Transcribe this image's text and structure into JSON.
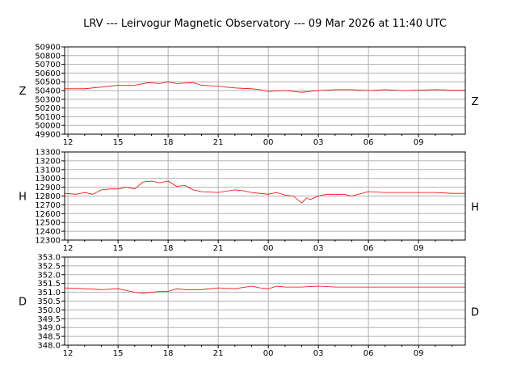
{
  "title": "LRV --- Leirvogur Magnetic Observatory --- 09 Mar 2026 at 11:40 UTC",
  "colors": {
    "trace": "#ff0000",
    "grid": "#b0b0b0",
    "axis": "#000000"
  },
  "chart_data": [
    {
      "type": "line",
      "component": "Z",
      "left_label": "Z",
      "right_label": "Z",
      "x_unit": "hours since 12:00 UTC 08 Mar 2026",
      "xlim": [
        -0.2,
        23.8
      ],
      "ylim": [
        49900,
        50900
      ],
      "yticks": [
        49900,
        50000,
        50100,
        50200,
        50300,
        50400,
        50500,
        50600,
        50700,
        50800,
        50900
      ],
      "xticks": [
        0,
        3,
        6,
        9,
        12,
        15,
        18,
        21
      ],
      "xtick_labels": [
        "12",
        "15",
        "18",
        "21",
        "00",
        "03",
        "06",
        "09"
      ],
      "series": [
        {
          "name": "Z",
          "x": [
            -0.2,
            1,
            2,
            3,
            4,
            4.8,
            5.5,
            6,
            6.5,
            7.5,
            8,
            9,
            10,
            11,
            11.5,
            12,
            13,
            14,
            15,
            16,
            17,
            18,
            19,
            20,
            21,
            22,
            23,
            23.8
          ],
          "y": [
            50420,
            50420,
            50440,
            50460,
            50460,
            50490,
            50480,
            50500,
            50480,
            50490,
            50460,
            50450,
            50430,
            50420,
            50410,
            50390,
            50400,
            50380,
            50400,
            50410,
            50410,
            50400,
            50410,
            50400,
            50405,
            50410,
            50405,
            50405
          ]
        }
      ]
    },
    {
      "type": "line",
      "component": "H",
      "left_label": "H",
      "right_label": "H",
      "x_unit": "hours since 12:00 UTC 08 Mar 2026",
      "xlim": [
        -0.2,
        23.8
      ],
      "ylim": [
        12300,
        13300
      ],
      "yticks": [
        12300,
        12400,
        12500,
        12600,
        12700,
        12800,
        12900,
        13000,
        13100,
        13200,
        13300
      ],
      "xticks": [
        0,
        3,
        6,
        9,
        12,
        15,
        18,
        21
      ],
      "xtick_labels": [
        "12",
        "15",
        "18",
        "21",
        "00",
        "03",
        "06",
        "09"
      ],
      "series": [
        {
          "name": "H",
          "x": [
            -0.2,
            0.5,
            1,
            1.5,
            2,
            2.5,
            3,
            3.5,
            4,
            4.5,
            5,
            5.5,
            6,
            6.5,
            7,
            7.5,
            8,
            9,
            10,
            10.5,
            11,
            11.5,
            12,
            12.5,
            13,
            13.5,
            14,
            14.3,
            14.5,
            15,
            15.5,
            16,
            16.5,
            17,
            18,
            19,
            20,
            21,
            22,
            23,
            23.8
          ],
          "y": [
            12830,
            12820,
            12840,
            12820,
            12870,
            12880,
            12880,
            12900,
            12880,
            12960,
            12970,
            12950,
            12970,
            12910,
            12920,
            12870,
            12850,
            12840,
            12870,
            12860,
            12840,
            12830,
            12820,
            12840,
            12810,
            12800,
            12720,
            12780,
            12760,
            12800,
            12820,
            12820,
            12820,
            12800,
            12850,
            12840,
            12840,
            12840,
            12840,
            12830,
            12830
          ]
        }
      ]
    },
    {
      "type": "line",
      "component": "D",
      "left_label": "D",
      "right_label": "D",
      "x_unit": "hours since 12:00 UTC 08 Mar 2026",
      "xlim": [
        -0.2,
        23.8
      ],
      "ylim": [
        348.0,
        353.0
      ],
      "yticks": [
        348.0,
        348.5,
        349.0,
        349.5,
        350.0,
        350.5,
        351.0,
        351.5,
        352.0,
        352.5,
        353.0
      ],
      "xticks": [
        0,
        3,
        6,
        9,
        12,
        15,
        18,
        21
      ],
      "xtick_labels": [
        "12",
        "15",
        "18",
        "21",
        "00",
        "03",
        "06",
        "09"
      ],
      "series": [
        {
          "name": "D",
          "x": [
            -0.2,
            1,
            2,
            3,
            3.5,
            4,
            4.5,
            5,
            5.5,
            6,
            6.5,
            7,
            8,
            9,
            10,
            11,
            11.5,
            12,
            12.5,
            13,
            14,
            15,
            16,
            17,
            18,
            19,
            20,
            21,
            22,
            23,
            23.8
          ],
          "y": [
            351.25,
            351.2,
            351.15,
            351.2,
            351.1,
            351.0,
            350.95,
            351.0,
            351.05,
            351.05,
            351.2,
            351.15,
            351.15,
            351.25,
            351.2,
            351.35,
            351.25,
            351.2,
            351.35,
            351.3,
            351.3,
            351.35,
            351.3,
            351.3,
            351.3,
            351.3,
            351.3,
            351.3,
            351.3,
            351.3,
            351.3
          ]
        }
      ]
    }
  ]
}
